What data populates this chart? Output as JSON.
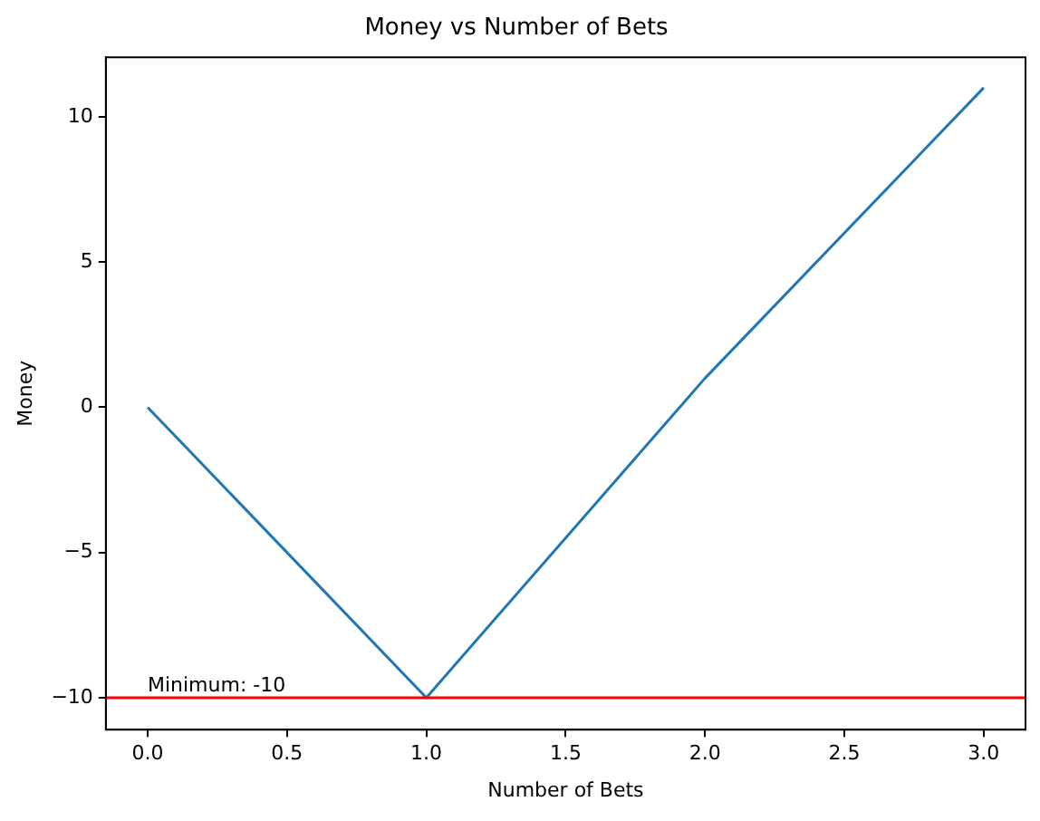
{
  "chart_data": {
    "type": "line",
    "title": "Money vs Number of Bets",
    "xlabel": "Number of Bets",
    "ylabel": "Money",
    "x": [
      0,
      1,
      2,
      3
    ],
    "series": [
      {
        "color": "#1f77b4",
        "values": [
          0,
          -10,
          1,
          11
        ]
      }
    ],
    "xlim": [
      -0.15,
      3.15
    ],
    "xticks": [
      {
        "value": 0,
        "label": "0.0"
      },
      {
        "value": 0.5,
        "label": "0.5"
      },
      {
        "value": 1,
        "label": "1.0"
      },
      {
        "value": 1.5,
        "label": "1.5"
      },
      {
        "value": 2,
        "label": "2.0"
      },
      {
        "value": 2.5,
        "label": "2.5"
      },
      {
        "value": 3,
        "label": "3.0"
      }
    ],
    "ylim": [
      -11.1,
      12.05
    ],
    "yticks": [
      {
        "value": -10,
        "label": "−10"
      },
      {
        "value": -5,
        "label": "−5"
      },
      0,
      5,
      10
    ],
    "ref_lines": [
      {
        "axis": "y",
        "value": -10,
        "color": "#ff0000"
      }
    ],
    "annotations": [
      {
        "text": "Minimum: -10",
        "x": 0,
        "y": -10
      }
    ],
    "grid": false,
    "legend": false,
    "marker": "none",
    "line_style": "solid"
  }
}
